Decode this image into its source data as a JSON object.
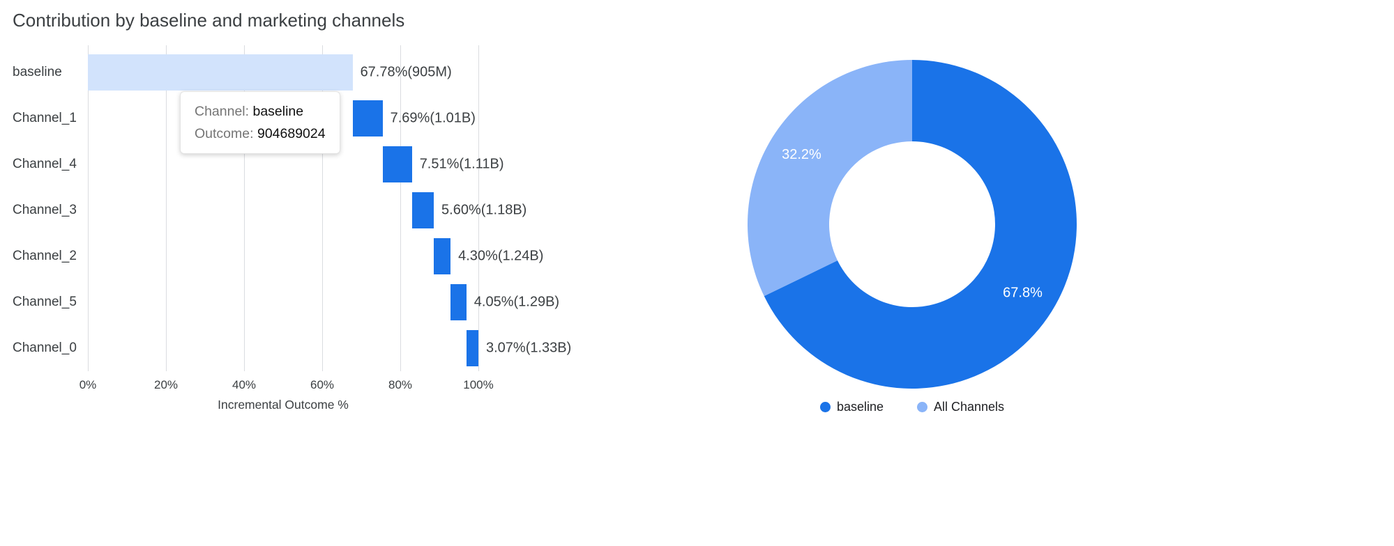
{
  "page": {
    "title": "Contribution by baseline and marketing channels"
  },
  "colors": {
    "channel_bar": "#1a73e8",
    "baseline_bar": "#d2e3fc",
    "donut_baseline": "#1a73e8",
    "donut_all_channels": "#8ab4f8",
    "gridline": "#dadce0",
    "slice_label_text": "#ffffff"
  },
  "tooltip": {
    "channel_label": "Channel:",
    "channel_value": "baseline",
    "outcome_label": "Outcome:",
    "outcome_value": "904689024"
  },
  "chart_data": [
    {
      "type": "bar",
      "variant": "horizontal-waterfall",
      "title": "Contribution by baseline and marketing channels",
      "xlabel": "Incremental Outcome %",
      "xlim": [
        0,
        100
      ],
      "grid": true,
      "x_ticks": [
        {
          "label": "0%",
          "value": 0
        },
        {
          "label": "20%",
          "value": 20
        },
        {
          "label": "40%",
          "value": 40
        },
        {
          "label": "60%",
          "value": 60
        },
        {
          "label": "80%",
          "value": 80
        },
        {
          "label": "100%",
          "value": 100
        }
      ],
      "categories": [
        "baseline",
        "Channel_1",
        "Channel_4",
        "Channel_3",
        "Channel_2",
        "Channel_5",
        "Channel_0"
      ],
      "segments": [
        {
          "category": "baseline",
          "start": 0,
          "end": 67.78,
          "percent": 67.78,
          "label": "67.78%(905M)",
          "color_key": "baseline_bar"
        },
        {
          "category": "Channel_1",
          "start": 67.78,
          "end": 75.47,
          "percent": 7.69,
          "label": "7.69%(1.01B)",
          "color_key": "channel_bar"
        },
        {
          "category": "Channel_4",
          "start": 75.47,
          "end": 82.98,
          "percent": 7.51,
          "label": "7.51%(1.11B)",
          "color_key": "channel_bar"
        },
        {
          "category": "Channel_3",
          "start": 82.98,
          "end": 88.58,
          "percent": 5.6,
          "label": "5.60%(1.18B)",
          "color_key": "channel_bar"
        },
        {
          "category": "Channel_2",
          "start": 88.58,
          "end": 92.88,
          "percent": 4.3,
          "label": "4.30%(1.24B)",
          "color_key": "channel_bar"
        },
        {
          "category": "Channel_5",
          "start": 92.88,
          "end": 96.93,
          "percent": 4.05,
          "label": "4.05%(1.29B)",
          "color_key": "channel_bar"
        },
        {
          "category": "Channel_0",
          "start": 96.93,
          "end": 100.0,
          "percent": 3.07,
          "label": "3.07%(1.33B)",
          "color_key": "channel_bar"
        }
      ]
    },
    {
      "type": "pie",
      "variant": "donut",
      "legend_position": "bottom",
      "slices": [
        {
          "label": "baseline",
          "value": 67.8,
          "display": "67.8%",
          "color_key": "donut_baseline"
        },
        {
          "label": "All Channels",
          "value": 32.2,
          "display": "32.2%",
          "color_key": "donut_all_channels"
        }
      ]
    }
  ]
}
